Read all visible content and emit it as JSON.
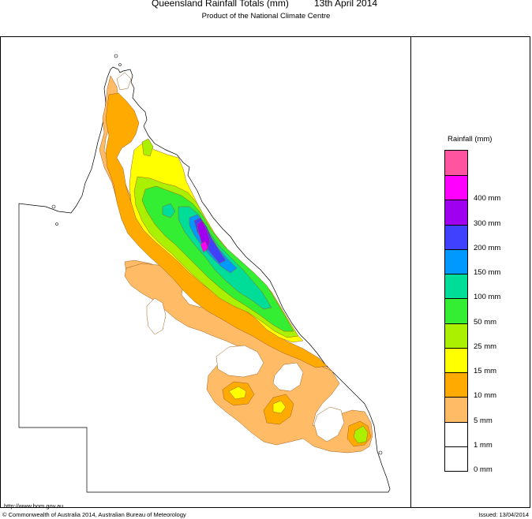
{
  "header": {
    "title": "Queensland Rainfall Totals (mm)",
    "date": "13th April 2014",
    "subtitle": "Product of the National Climate Centre"
  },
  "legend": {
    "title": "Rainfall (mm)",
    "bands": [
      {
        "label": "",
        "color": "#ff55a0"
      },
      {
        "label": "400 mm",
        "color": "#ff00ff"
      },
      {
        "label": "300 mm",
        "color": "#a000f0"
      },
      {
        "label": "200 mm",
        "color": "#4040ff"
      },
      {
        "label": "150 mm",
        "color": "#0099ff"
      },
      {
        "label": "100 mm",
        "color": "#00dd99"
      },
      {
        "label": "50 mm",
        "color": "#33ee33"
      },
      {
        "label": "25 mm",
        "color": "#aaf000"
      },
      {
        "label": "15 mm",
        "color": "#ffff00"
      },
      {
        "label": "10 mm",
        "color": "#ffaa00"
      },
      {
        "label": "5 mm",
        "color": "#ffbb66"
      },
      {
        "label": "1 mm",
        "color": "#ffffff"
      },
      {
        "label": "0 mm",
        "color": "#ffffff"
      }
    ]
  },
  "footer": {
    "url": "http://www.bom.gov.au",
    "copyright": "© Commonwealth of Australia 2014, Australian Bureau of Meteorology",
    "issued": "Issued: 13/04/2014"
  }
}
